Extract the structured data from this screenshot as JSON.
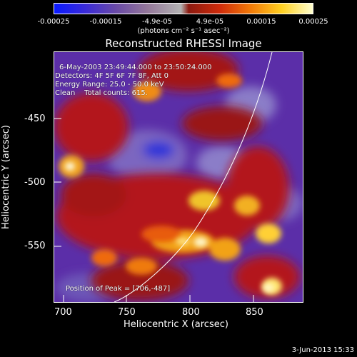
{
  "colorbar": {
    "tick_labels": [
      "-0.00025",
      "-0.00015",
      "-4.9e-05",
      "4.9e-05",
      "0.00015",
      "0.00025"
    ],
    "units_label": "(photons cm⁻² s⁻¹ asec⁻²)"
  },
  "title": "Reconstructed RHESSI Image",
  "info": {
    "time_range": "6-May-2003 23:49:44.000 to 23:50:24.000",
    "detectors": "Detectors: 4F 5F 6F 7F 8F, Att 0",
    "energy_range": "Energy Range: 25.0 - 50.0 keV",
    "clean": "Clean    Total counts: 615.",
    "peak": "Position of Peak = [706,-487]"
  },
  "axes": {
    "xlabel": "Heliocentric X (arcsec)",
    "ylabel": "Heliocentric Y (arcsec)",
    "x_ticks": [
      "700",
      "750",
      "800",
      "850"
    ],
    "y_ticks": [
      "-450",
      "-500",
      "-550"
    ]
  },
  "footer": {
    "timestamp": "3-Jun-2013 15:33"
  }
}
